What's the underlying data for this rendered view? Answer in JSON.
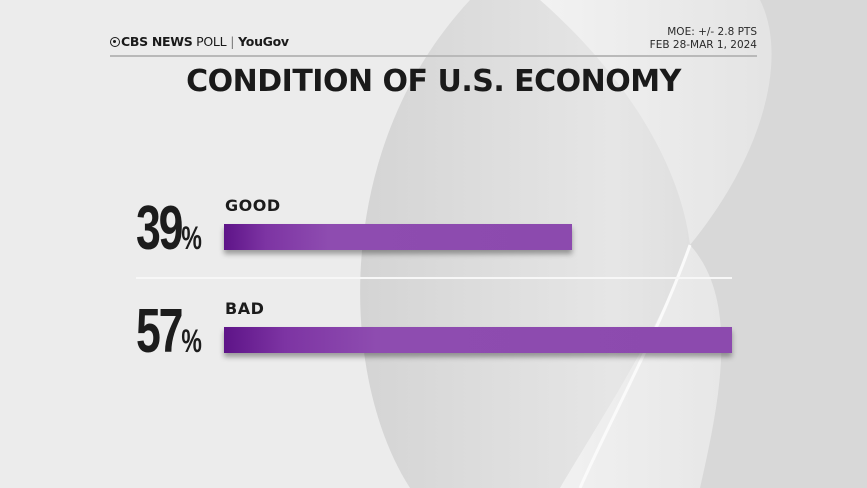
{
  "header": {
    "brand": "CBS NEWS",
    "brand_suffix": "POLL",
    "partner": "YouGov",
    "moe": "MOE: +/- 2.8 PTS",
    "dates": "FEB 28-MAR 1, 2024"
  },
  "colors": {
    "bar": "#8c4aae",
    "bar_dark": "#5e1488",
    "text": "#1c1c1c"
  },
  "chart_data": {
    "type": "bar",
    "orientation": "horizontal",
    "title": "CONDITION OF U.S. ECONOMY",
    "categories": [
      "GOOD",
      "BAD"
    ],
    "values": [
      39,
      57
    ],
    "value_labels": [
      "39",
      "57"
    ],
    "unit": "%",
    "xlim": [
      0,
      57
    ],
    "grid": false
  }
}
